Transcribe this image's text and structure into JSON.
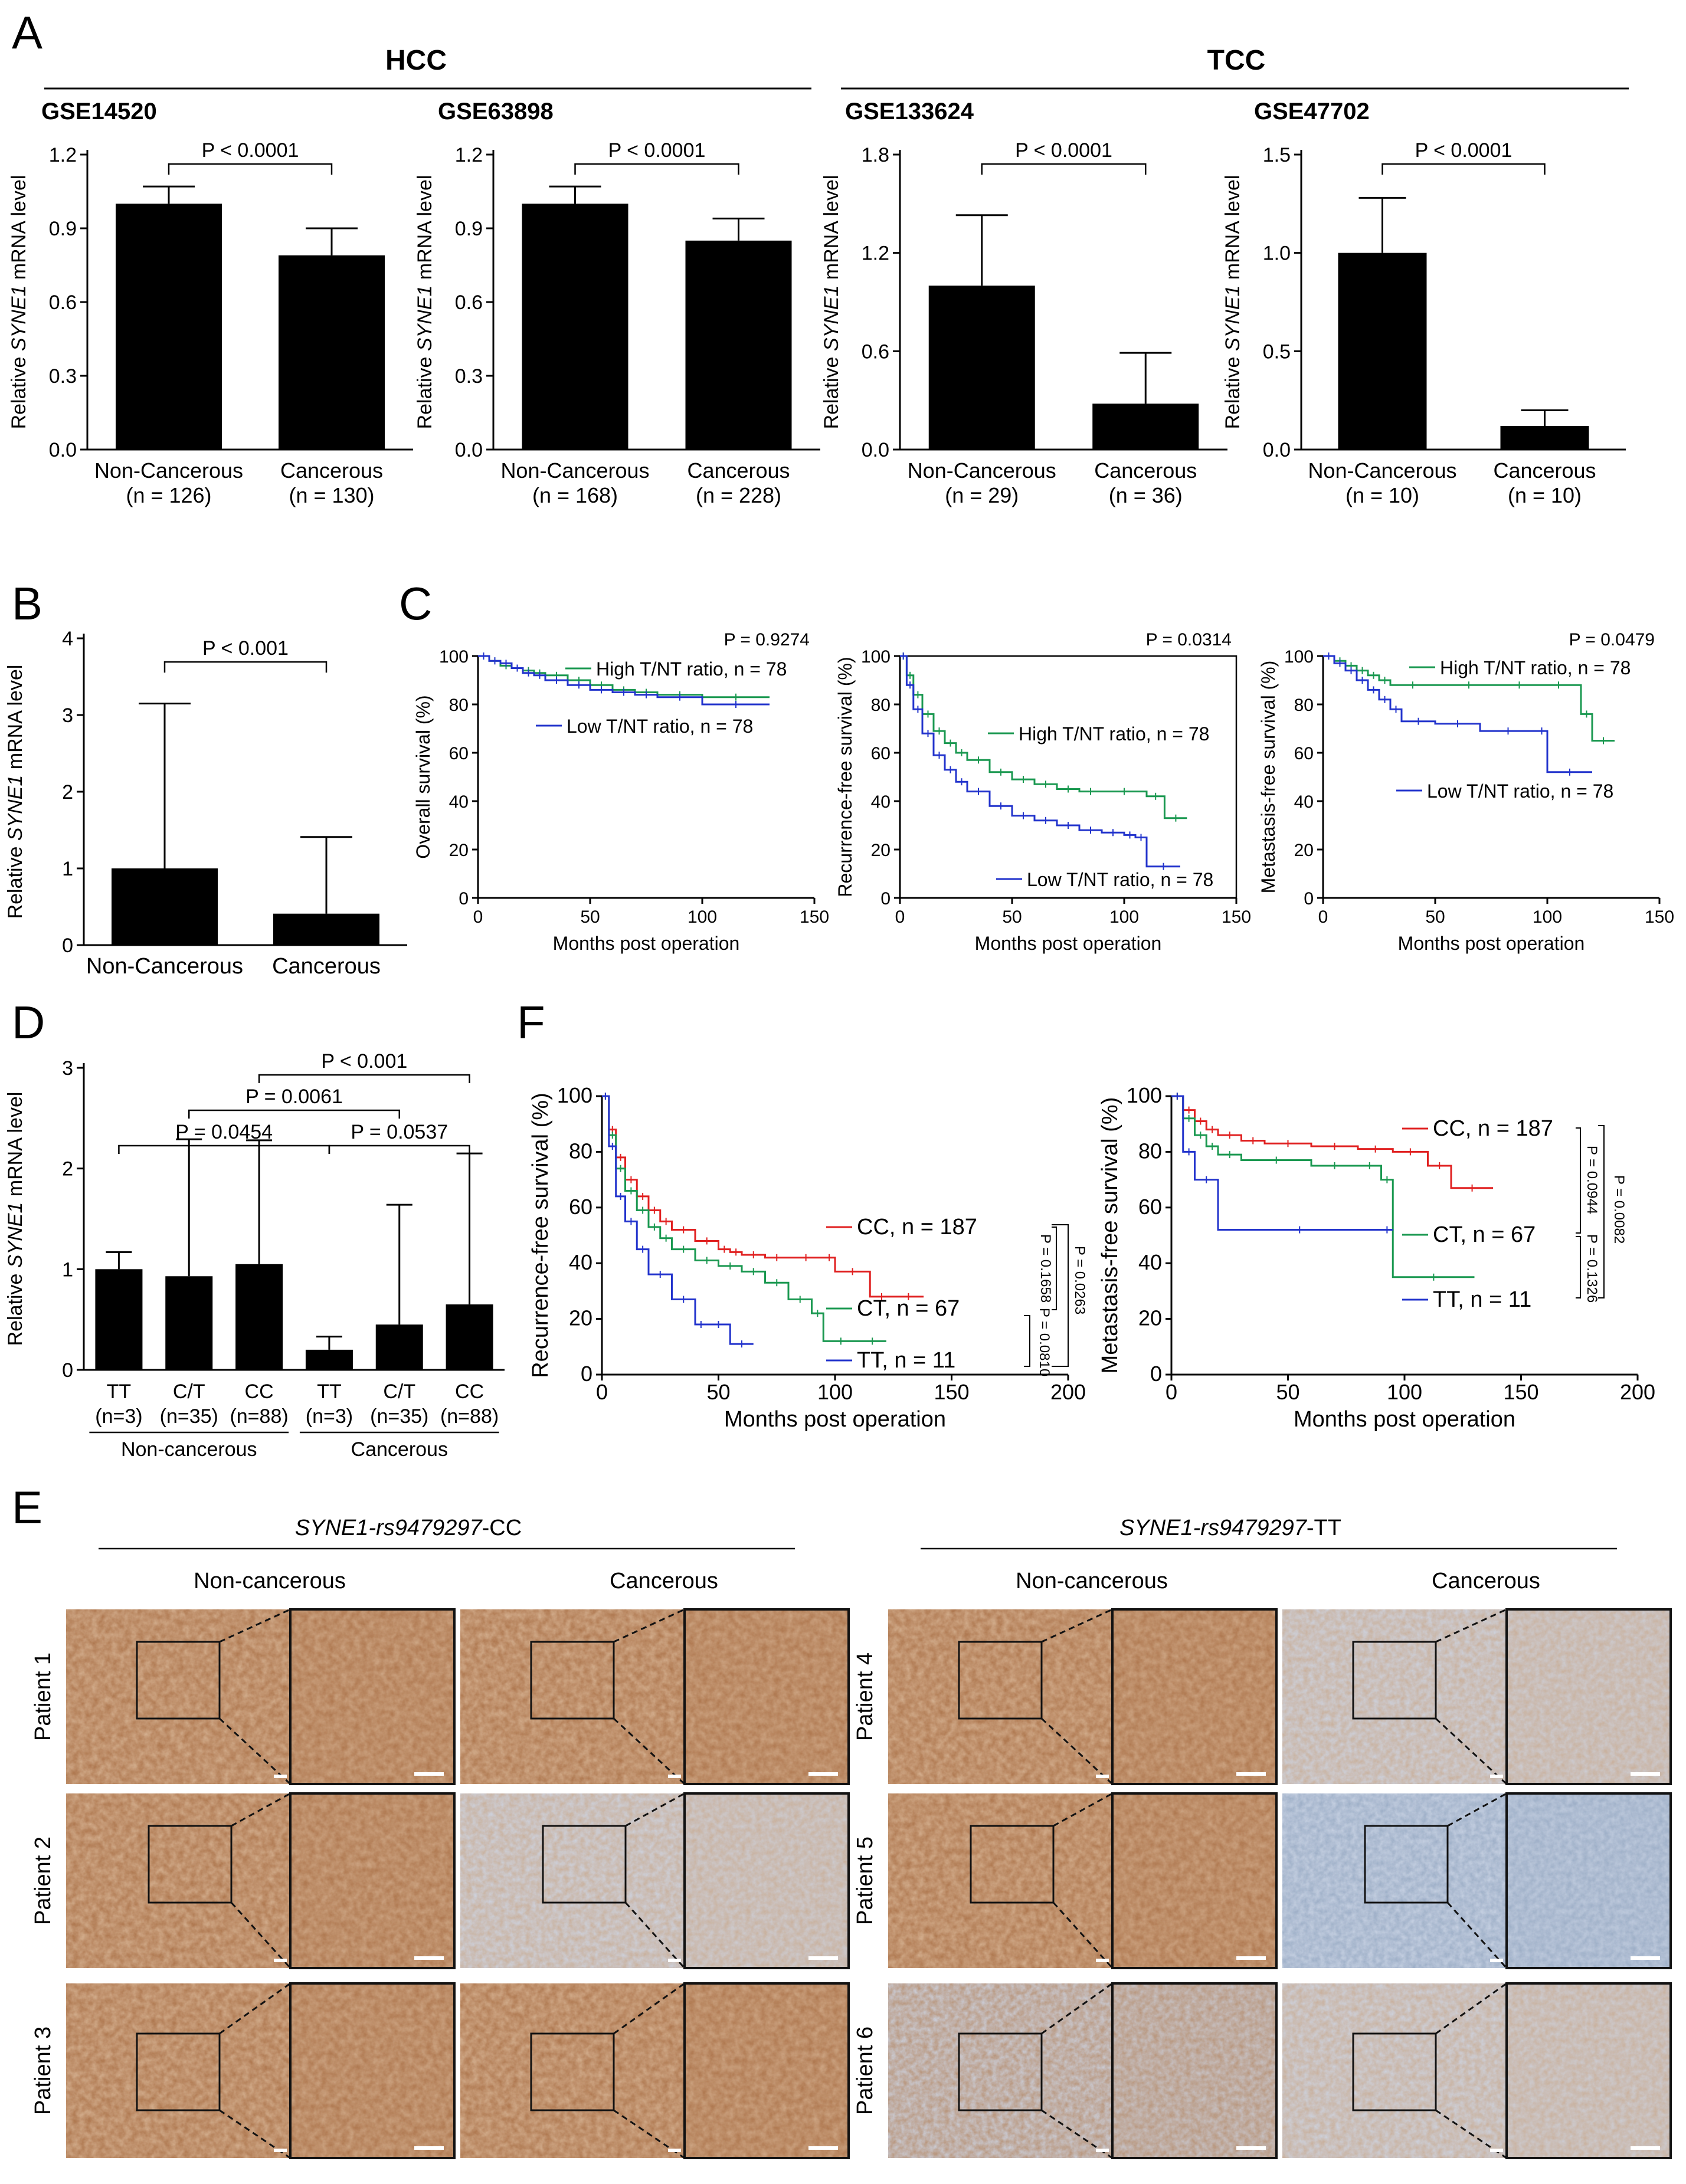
{
  "panels": {
    "A": "A",
    "B": "B",
    "C": "C",
    "D": "D",
    "E": "E",
    "F": "F"
  },
  "group_titles": {
    "hcc": "HCC",
    "tcc": "TCC"
  },
  "chart_data": [
    {
      "id": "A1",
      "type": "bar",
      "title": "GSE14520",
      "ylabel_parts": [
        "Relative ",
        "SYNE1",
        " mRNA level"
      ],
      "categories": [
        [
          "Non-Cancerous",
          "(n = 126)"
        ],
        [
          "Cancerous",
          "(n = 130)"
        ]
      ],
      "values": [
        1.0,
        0.79
      ],
      "errors": [
        0.07,
        0.11
      ],
      "ylim": [
        0,
        1.2
      ],
      "yticks": [
        "0.0",
        "0.3",
        "0.6",
        "0.9",
        "1.2"
      ],
      "pvalues": [
        "P < 0.0001"
      ]
    },
    {
      "id": "A2",
      "type": "bar",
      "title": "GSE63898",
      "ylabel_parts": [
        "Relative ",
        "SYNE1",
        " mRNA level"
      ],
      "categories": [
        [
          "Non-Cancerous",
          "(n = 168)"
        ],
        [
          "Cancerous",
          "(n = 228)"
        ]
      ],
      "values": [
        1.0,
        0.85
      ],
      "errors": [
        0.07,
        0.09
      ],
      "ylim": [
        0,
        1.2
      ],
      "yticks": [
        "0.0",
        "0.3",
        "0.6",
        "0.9",
        "1.2"
      ],
      "pvalues": [
        "P < 0.0001"
      ]
    },
    {
      "id": "A3",
      "type": "bar",
      "title": "GSE133624",
      "ylabel_parts": [
        "Relative ",
        "SYNE1",
        " mRNA level"
      ],
      "categories": [
        [
          "Non-Cancerous",
          "(n = 29)"
        ],
        [
          "Cancerous",
          "(n = 36)"
        ]
      ],
      "values": [
        1.0,
        0.28
      ],
      "errors": [
        0.43,
        0.31
      ],
      "ylim": [
        0,
        1.8
      ],
      "yticks": [
        "0.0",
        "0.6",
        "1.2",
        "1.8"
      ],
      "pvalues": [
        "P < 0.0001"
      ]
    },
    {
      "id": "A4",
      "type": "bar",
      "title": "GSE47702",
      "ylabel_parts": [
        "Relative ",
        "SYNE1",
        " mRNA level"
      ],
      "categories": [
        [
          "Non-Cancerous",
          "(n = 10)"
        ],
        [
          "Cancerous",
          "(n = 10)"
        ]
      ],
      "values": [
        1.0,
        0.12
      ],
      "errors": [
        0.28,
        0.08
      ],
      "ylim": [
        0,
        1.5
      ],
      "yticks": [
        "0.0",
        "0.5",
        "1.0",
        "1.5"
      ],
      "pvalues": [
        "P < 0.0001"
      ]
    },
    {
      "id": "B",
      "type": "bar",
      "title": "",
      "ylabel_parts": [
        "Relative ",
        "SYNE1",
        " mRNA level"
      ],
      "categories": [
        [
          "Non-Cancerous"
        ],
        [
          "Cancerous"
        ]
      ],
      "values": [
        1.0,
        0.41
      ],
      "errors": [
        2.15,
        1.0
      ],
      "ylim": [
        0,
        4
      ],
      "yticks": [
        "0",
        "1",
        "2",
        "3",
        "4"
      ],
      "pvalues": [
        "P < 0.001"
      ]
    },
    {
      "id": "C1",
      "type": "line",
      "ylabel": "Overall survival (%)",
      "xlabel": "Months post operation",
      "xlim": [
        0,
        150
      ],
      "ylim": [
        0,
        100
      ],
      "xticks": [
        "0",
        "50",
        "100",
        "150"
      ],
      "yticks": [
        "0",
        "20",
        "40",
        "60",
        "80",
        "100"
      ],
      "pvalue": "P = 0.9274",
      "series": [
        {
          "name": "High T/NT ratio, n = 78",
          "color": "#1a9850",
          "x": [
            0,
            5,
            10,
            15,
            20,
            25,
            30,
            40,
            50,
            60,
            70,
            80,
            100,
            130
          ],
          "y": [
            100,
            98,
            96,
            95,
            94,
            93,
            92,
            90,
            88,
            86,
            85,
            84,
            83,
            83
          ]
        },
        {
          "name": "Low T/NT ratio, n = 78",
          "color": "#2233cc",
          "x": [
            0,
            5,
            10,
            15,
            20,
            25,
            30,
            40,
            50,
            60,
            70,
            80,
            100,
            130
          ],
          "y": [
            100,
            98,
            97,
            95,
            93,
            92,
            90,
            88,
            86,
            85,
            84,
            83,
            80,
            80
          ]
        }
      ]
    },
    {
      "id": "C2",
      "type": "line",
      "ylabel": "Recurrence-free survival (%)",
      "xlabel": "Months post operation",
      "xlim": [
        0,
        150
      ],
      "ylim": [
        0,
        100
      ],
      "xticks": [
        "0",
        "50",
        "100",
        "150"
      ],
      "yticks": [
        "0",
        "20",
        "40",
        "60",
        "80",
        "100"
      ],
      "pvalue": "P = 0.0314",
      "series": [
        {
          "name": "High T/NT ratio, n = 78",
          "color": "#1a9850",
          "x": [
            0,
            3,
            6,
            10,
            15,
            20,
            25,
            30,
            40,
            50,
            60,
            70,
            80,
            90,
            110,
            118,
            128
          ],
          "y": [
            100,
            92,
            84,
            76,
            69,
            64,
            60,
            57,
            52,
            49,
            47,
            45,
            44,
            44,
            42,
            33,
            33
          ]
        },
        {
          "name": "Low T/NT ratio, n = 78",
          "color": "#2233cc",
          "x": [
            0,
            3,
            6,
            10,
            15,
            20,
            25,
            30,
            40,
            50,
            60,
            70,
            80,
            90,
            100,
            105,
            110,
            125
          ],
          "y": [
            100,
            88,
            78,
            68,
            59,
            53,
            48,
            44,
            38,
            34,
            32,
            30,
            28,
            27,
            26,
            25,
            13,
            13
          ]
        }
      ]
    },
    {
      "id": "C3",
      "type": "line",
      "ylabel": "Metastasis-free survival (%)",
      "xlabel": "Months post operation",
      "xlim": [
        0,
        150
      ],
      "ylim": [
        0,
        100
      ],
      "xticks": [
        "0",
        "50",
        "100",
        "150"
      ],
      "yticks": [
        "0",
        "20",
        "40",
        "60",
        "80",
        "100"
      ],
      "pvalue": "P = 0.0479",
      "series": [
        {
          "name": "High T/NT ratio, n = 78",
          "color": "#1a9850",
          "x": [
            0,
            5,
            10,
            15,
            20,
            25,
            30,
            50,
            80,
            95,
            115,
            120,
            130
          ],
          "y": [
            100,
            98,
            96,
            94,
            92,
            90,
            88,
            88,
            88,
            88,
            76,
            65,
            65
          ]
        },
        {
          "name": "Low T/NT ratio, n = 78",
          "color": "#2233cc",
          "x": [
            0,
            5,
            10,
            15,
            20,
            25,
            30,
            35,
            50,
            70,
            95,
            100,
            120
          ],
          "y": [
            100,
            97,
            94,
            90,
            86,
            82,
            78,
            73,
            72,
            69,
            69,
            52,
            52
          ]
        }
      ]
    },
    {
      "id": "D",
      "type": "bar",
      "ylabel_parts": [
        "Relative ",
        "SYNE1",
        " mRNA level"
      ],
      "categories": [
        [
          "TT",
          "(n=3)"
        ],
        [
          "C/T",
          "(n=35)"
        ],
        [
          "CC",
          "(n=88)"
        ],
        [
          "TT",
          "(n=3)"
        ],
        [
          "C/T",
          "(n=35)"
        ],
        [
          "CC",
          "(n=88)"
        ]
      ],
      "values": [
        1.0,
        0.93,
        1.05,
        0.2,
        0.45,
        0.65
      ],
      "errors": [
        0.17,
        1.36,
        1.23,
        0.13,
        1.19,
        1.5
      ],
      "ylim": [
        0,
        3
      ],
      "yticks": [
        "0",
        "1",
        "2",
        "3"
      ],
      "groups": [
        "Non-cancerous",
        "Cancerous"
      ],
      "pvalues": [
        "P < 0.001",
        "P = 0.0061",
        "P = 0.0454",
        "P = 0.0537"
      ]
    },
    {
      "id": "F1",
      "type": "line",
      "ylabel": "Recurrence-free survival (%)",
      "xlabel": "Months post operation",
      "xlim": [
        0,
        200
      ],
      "ylim": [
        0,
        100
      ],
      "xticks": [
        "0",
        "50",
        "100",
        "150",
        "200"
      ],
      "yticks": [
        "0",
        "20",
        "40",
        "60",
        "80",
        "100"
      ],
      "pvalues": [
        "P = 0.1658",
        "P = 0.0263",
        "P = 0.0810"
      ],
      "series": [
        {
          "name": "CC, n = 187",
          "color": "#e02020",
          "x": [
            0,
            3,
            6,
            10,
            15,
            20,
            25,
            30,
            40,
            50,
            55,
            60,
            70,
            80,
            95,
            100,
            115,
            125,
            138
          ],
          "y": [
            100,
            88,
            78,
            70,
            64,
            59,
            55,
            52,
            48,
            45,
            44,
            43,
            42,
            42,
            42,
            37,
            28,
            28,
            28
          ]
        },
        {
          "name": "CT, n = 67",
          "color": "#1a9850",
          "x": [
            0,
            3,
            6,
            10,
            15,
            20,
            25,
            30,
            40,
            50,
            60,
            70,
            80,
            90,
            95,
            110,
            122
          ],
          "y": [
            100,
            86,
            74,
            66,
            59,
            53,
            49,
            45,
            41,
            39,
            37,
            33,
            27,
            22,
            12,
            12,
            12
          ]
        },
        {
          "name": "TT, n = 11",
          "color": "#2233cc",
          "x": [
            0,
            3,
            6,
            10,
            15,
            20,
            30,
            40,
            45,
            55,
            65
          ],
          "y": [
            100,
            82,
            64,
            55,
            45,
            36,
            27,
            18,
            18,
            11,
            11
          ]
        }
      ]
    },
    {
      "id": "F2",
      "type": "line",
      "ylabel": "Metastasis-free survival (%)",
      "xlabel": "Months post operation",
      "xlim": [
        0,
        200
      ],
      "ylim": [
        0,
        100
      ],
      "xticks": [
        "0",
        "50",
        "100",
        "150",
        "200"
      ],
      "yticks": [
        "0",
        "20",
        "40",
        "60",
        "80",
        "100"
      ],
      "pvalues": [
        "P = 0.0944",
        "P = 0.0082",
        "P = 0.1326"
      ],
      "series": [
        {
          "name": "CC, n = 187",
          "color": "#e02020",
          "x": [
            0,
            5,
            10,
            15,
            20,
            30,
            40,
            60,
            80,
            95,
            110,
            120,
            138
          ],
          "y": [
            100,
            95,
            91,
            88,
            86,
            84,
            83,
            82,
            81,
            80,
            75,
            67,
            67
          ]
        },
        {
          "name": "CT, n = 67",
          "color": "#1a9850",
          "x": [
            0,
            5,
            10,
            15,
            20,
            30,
            60,
            80,
            90,
            95,
            130
          ],
          "y": [
            100,
            92,
            86,
            82,
            79,
            77,
            75,
            75,
            70,
            35,
            35
          ]
        },
        {
          "name": "TT, n = 11",
          "color": "#2233cc",
          "x": [
            0,
            5,
            10,
            20,
            90,
            95
          ],
          "y": [
            100,
            80,
            70,
            52,
            52,
            52
          ]
        }
      ]
    }
  ],
  "ihc": {
    "groups": [
      {
        "genotype": "SYNE1-rs9479297",
        "suffix": "-CC",
        "columns": [
          "Non-cancerous",
          "Cancerous"
        ],
        "rows": [
          "Patient 1",
          "Patient 2",
          "Patient 3"
        ]
      },
      {
        "genotype": "SYNE1-rs9479297",
        "suffix": "-TT",
        "columns": [
          "Non-cancerous",
          "Cancerous"
        ],
        "rows": [
          "Patient 4",
          "Patient 5",
          "Patient 6"
        ]
      }
    ],
    "stain_colors": {
      "brown": "#b07a52",
      "pale": "#c9b2a0",
      "blue": "#9fb0c8",
      "mixed": "#b99880"
    }
  }
}
